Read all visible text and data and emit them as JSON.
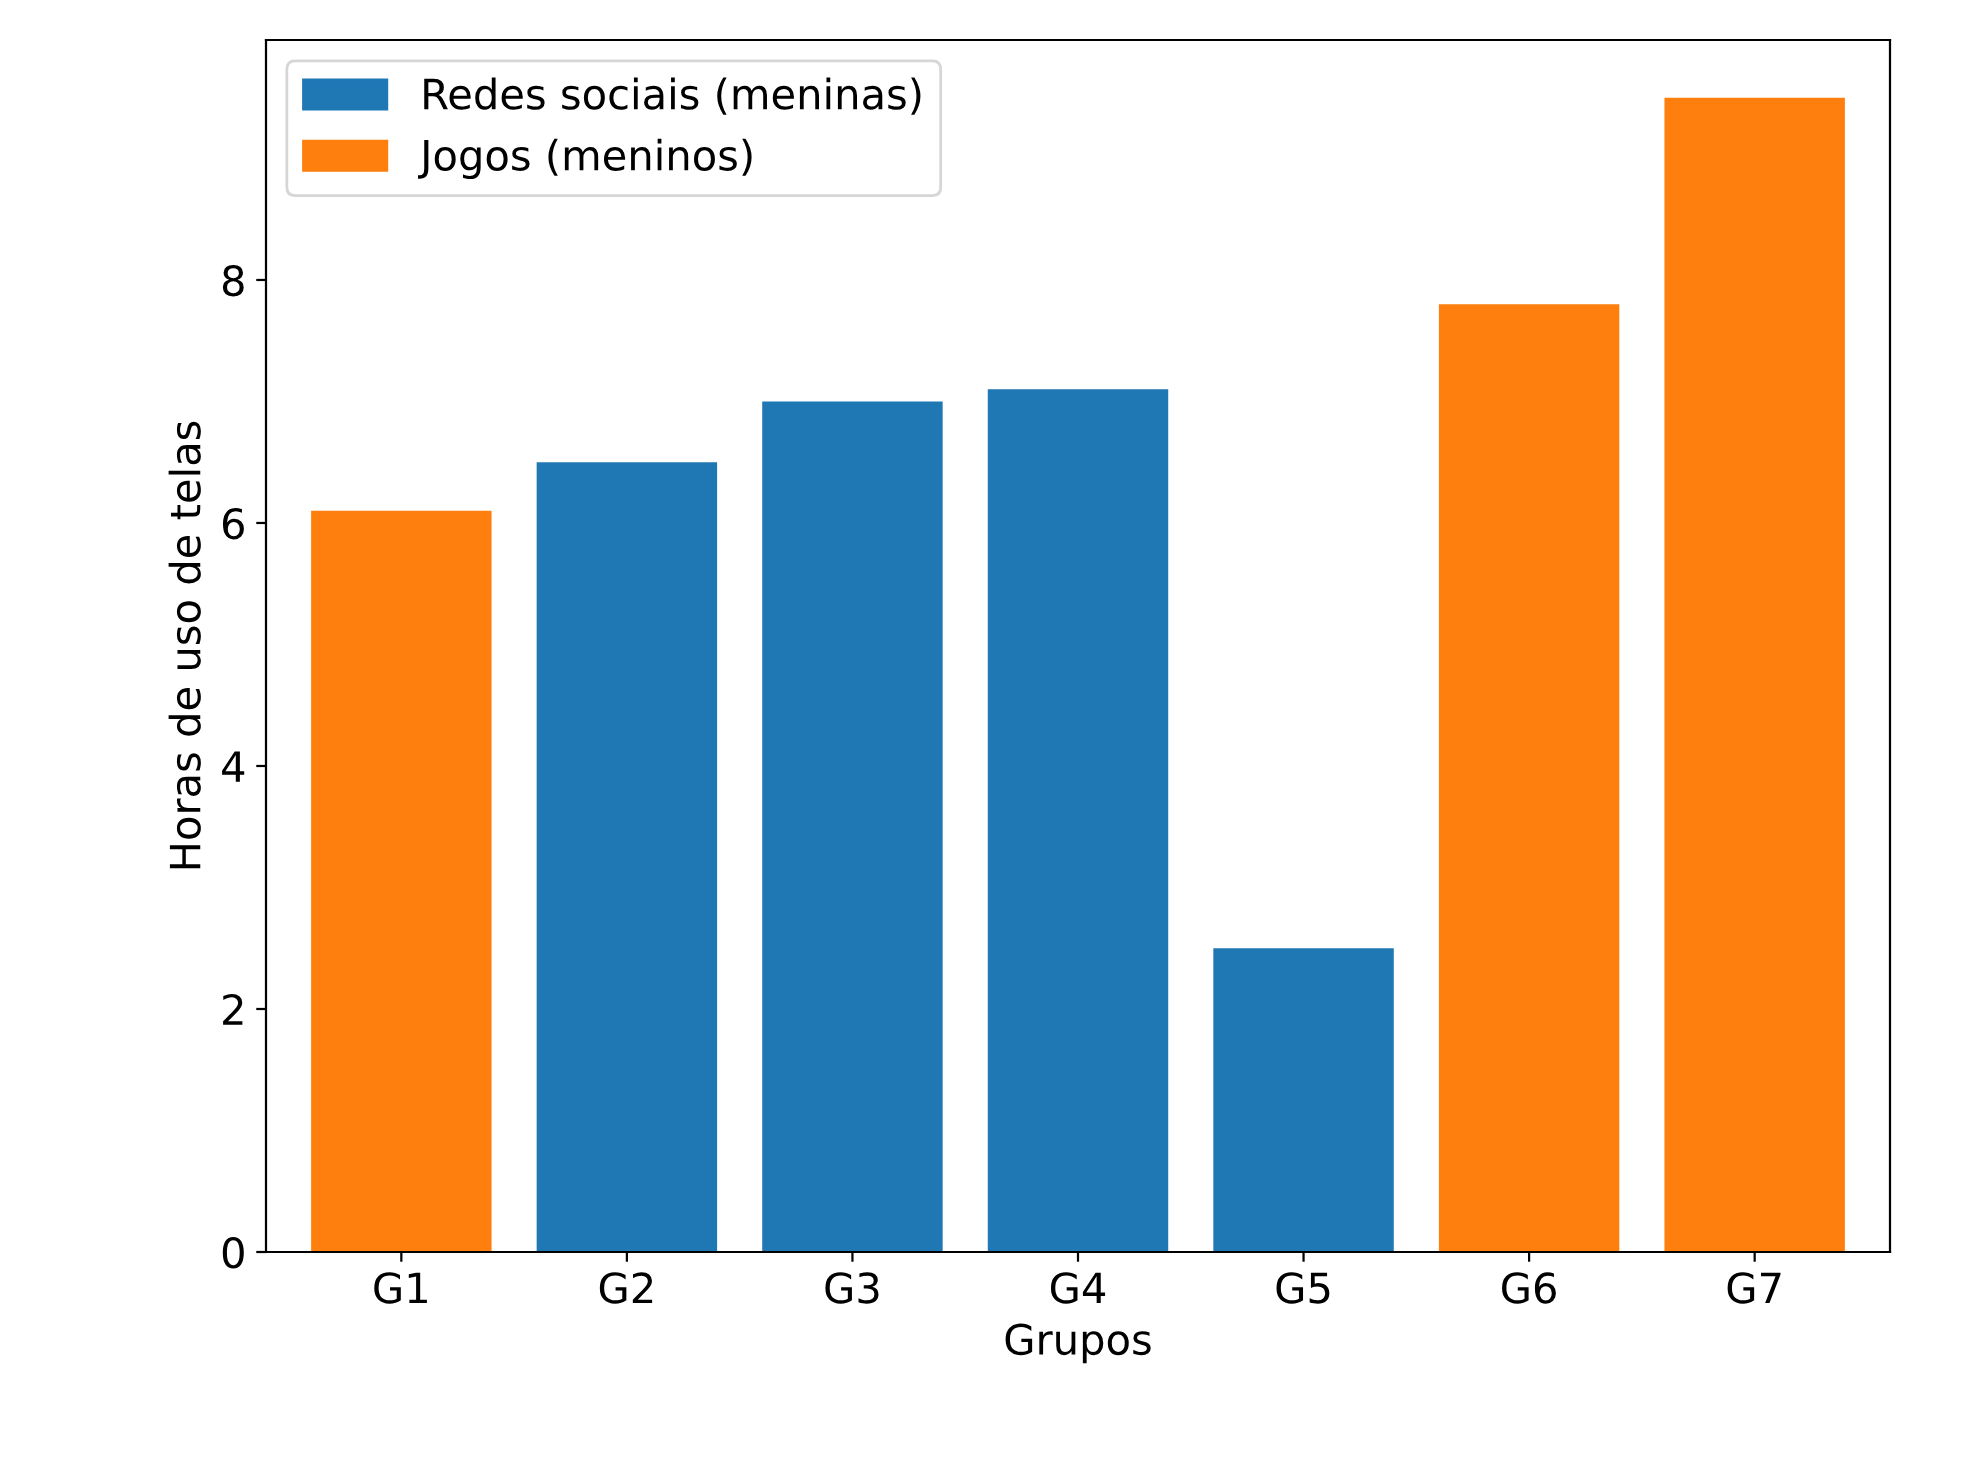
{
  "chart_data": {
    "type": "bar",
    "xlabel": "Grupos",
    "ylabel": "Horas de uso de telas",
    "categories": [
      "G1",
      "G2",
      "G3",
      "G4",
      "G5",
      "G6",
      "G7"
    ],
    "series": [
      {
        "name": "Redes sociais (meninas)",
        "color": "#1f77b4",
        "values": [
          null,
          6.5,
          7.0,
          7.1,
          2.5,
          null,
          null
        ]
      },
      {
        "name": "Jogos (meninos)",
        "color": "#ff7f0e",
        "values": [
          6.1,
          null,
          null,
          null,
          null,
          7.8,
          9.5
        ]
      }
    ],
    "ylim": [
      0,
      9.975
    ],
    "yticks": [
      0,
      2,
      4,
      6,
      8
    ],
    "grid": false,
    "legend": "top left"
  }
}
